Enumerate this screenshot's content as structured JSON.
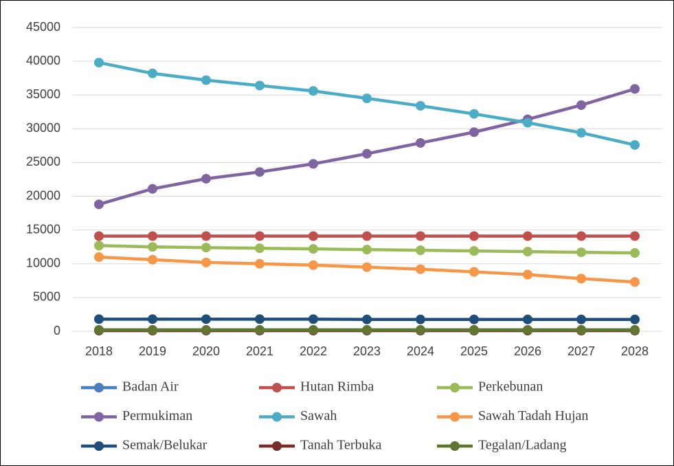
{
  "chart_data": {
    "type": "line",
    "categories": [
      "2018",
      "2019",
      "2020",
      "2021",
      "2022",
      "2023",
      "2024",
      "2025",
      "2026",
      "2027",
      "2028"
    ],
    "ylim": [
      0,
      45000
    ],
    "yticks": [
      0,
      5000,
      10000,
      15000,
      20000,
      25000,
      30000,
      35000,
      40000,
      45000
    ],
    "grid": true,
    "legend": "bottom",
    "series": [
      {
        "name": "Badan Air",
        "color": "#4a7ebb",
        "values": [
          200,
          200,
          200,
          200,
          200,
          200,
          200,
          200,
          200,
          200,
          200
        ]
      },
      {
        "name": "Hutan Rimba",
        "color": "#c0504d",
        "values": [
          14100,
          14100,
          14100,
          14100,
          14100,
          14100,
          14100,
          14100,
          14100,
          14100,
          14100
        ]
      },
      {
        "name": "Perkebunan",
        "color": "#9bbb59",
        "values": [
          12700,
          12500,
          12400,
          12300,
          12200,
          12100,
          12000,
          11900,
          11800,
          11700,
          11600
        ]
      },
      {
        "name": "Permukiman",
        "color": "#8064a2",
        "values": [
          18800,
          21100,
          22600,
          23600,
          24800,
          26300,
          27900,
          29500,
          31400,
          33500,
          35900
        ]
      },
      {
        "name": "Sawah",
        "color": "#4bacc6",
        "values": [
          39800,
          38200,
          37200,
          36400,
          35600,
          34500,
          33400,
          32200,
          30900,
          29400,
          27600
        ]
      },
      {
        "name": "Sawah Tadah Hujan",
        "color": "#f79646",
        "values": [
          11000,
          10600,
          10200,
          10000,
          9800,
          9500,
          9200,
          8800,
          8400,
          7800,
          7300
        ]
      },
      {
        "name": "Semak/Belukar",
        "color": "#1f4e79",
        "values": [
          1800,
          1800,
          1800,
          1800,
          1800,
          1750,
          1750,
          1750,
          1750,
          1750,
          1750
        ]
      },
      {
        "name": "Tanah Terbuka",
        "color": "#772c2a",
        "values": [
          100,
          100,
          100,
          100,
          100,
          100,
          100,
          100,
          100,
          100,
          100
        ]
      },
      {
        "name": "Tegalan/Ladang",
        "color": "#5f7530",
        "values": [
          200,
          200,
          200,
          200,
          200,
          200,
          200,
          200,
          200,
          200,
          200
        ]
      }
    ]
  }
}
